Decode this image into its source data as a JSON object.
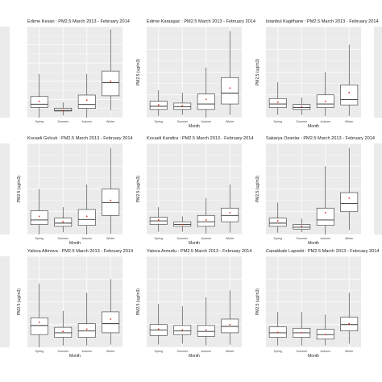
{
  "chart_data": [
    {
      "type": "box",
      "title": "Edirne Kesan : PM2.5 March 2013 - February 2014",
      "xlabel": "",
      "ylabel": "",
      "categories": [
        "Spring",
        "Summer",
        "Autumn",
        "Winter"
      ],
      "boxes": [
        {
          "q1": 28,
          "median": 37,
          "q3": 58,
          "lo": 0,
          "hi": 120,
          "mean": 45
        },
        {
          "q1": 18,
          "median": 20,
          "q3": 26,
          "lo": 6,
          "hi": 42,
          "mean": 20
        },
        {
          "q1": 25,
          "median": 36,
          "q3": 62,
          "lo": 0,
          "hi": 120,
          "mean": 48
        },
        {
          "q1": 60,
          "median": 96,
          "q3": 128,
          "lo": 20,
          "hi": 242,
          "mean": 100
        }
      ],
      "ylim": [
        0,
        250
      ]
    },
    {
      "type": "box",
      "title": "Edirne Karaagac : PM2.5 March 2013 - February 2014",
      "xlabel": "Month",
      "ylabel": "PM2.5 (ug/m3)",
      "categories": [
        "Spring",
        "Summer",
        "Autumn",
        "Winter"
      ],
      "boxes": [
        {
          "q1": 18,
          "median": 25,
          "q3": 36,
          "lo": 4,
          "hi": 60,
          "mean": 28
        },
        {
          "q1": 18,
          "median": 24,
          "q3": 32,
          "lo": 6,
          "hi": 55,
          "mean": 26
        },
        {
          "q1": 18,
          "median": 30,
          "q3": 52,
          "lo": 0,
          "hi": 110,
          "mean": 40
        },
        {
          "q1": 30,
          "median": 54,
          "q3": 88,
          "lo": 6,
          "hi": 190,
          "mean": 65
        }
      ],
      "ylim": [
        0,
        200
      ]
    },
    {
      "type": "box",
      "title": "Istanbul Kagithane : PM2.5 March 2013 - February 2014",
      "xlabel": "Month",
      "ylabel": "PM2.5 (ug/m3)",
      "categories": [
        "Spring",
        "Summer",
        "Autumn",
        "Winter"
      ],
      "boxes": [
        {
          "q1": 22,
          "median": 30,
          "q3": 42,
          "lo": 6,
          "hi": 78,
          "mean": 34
        },
        {
          "q1": 18,
          "median": 22,
          "q3": 29,
          "lo": 6,
          "hi": 44,
          "mean": 24
        },
        {
          "q1": 22,
          "median": 30,
          "q3": 50,
          "lo": 4,
          "hi": 100,
          "mean": 36
        },
        {
          "q1": 28,
          "median": 40,
          "q3": 72,
          "lo": 4,
          "hi": 160,
          "mean": 55
        }
      ],
      "ylim": [
        0,
        200
      ]
    },
    {
      "type": "box",
      "title": "Kocaeli Golcuk : PM2.5 March 2013 - February 2014",
      "xlabel": "Month",
      "ylabel": "PM2.5 (ug/m3)",
      "categories": [
        "Spring",
        "Summer",
        "Autumn",
        "Winter"
      ],
      "boxes": [
        {
          "q1": 22,
          "median": 32,
          "q3": 52,
          "lo": 0,
          "hi": 100,
          "mean": 40
        },
        {
          "q1": 18,
          "median": 25,
          "q3": 36,
          "lo": 5,
          "hi": 60,
          "mean": 28
        },
        {
          "q1": 20,
          "median": 33,
          "q3": 55,
          "lo": 0,
          "hi": 110,
          "mean": 40
        },
        {
          "q1": 42,
          "median": 70,
          "q3": 100,
          "lo": 2,
          "hi": 190,
          "mean": 75
        }
      ],
      "ylim": [
        0,
        200
      ]
    },
    {
      "type": "box",
      "title": "Kocaeli Kandira : PM2.5 March 2013 - February 2014",
      "xlabel": "Month",
      "ylabel": "PM2.5 (ug/m3)",
      "categories": [
        "Spring",
        "Summer",
        "Autumn",
        "Winter"
      ],
      "boxes": [
        {
          "q1": 22,
          "median": 30,
          "q3": 38,
          "lo": 6,
          "hi": 60,
          "mean": 32
        },
        {
          "q1": 18,
          "median": 22,
          "q3": 28,
          "lo": 6,
          "hi": 40,
          "mean": 22
        },
        {
          "q1": 18,
          "median": 28,
          "q3": 42,
          "lo": 2,
          "hi": 80,
          "mean": 32
        },
        {
          "q1": 28,
          "median": 42,
          "q3": 58,
          "lo": 4,
          "hi": 110,
          "mean": 48
        }
      ],
      "ylim": [
        0,
        200
      ]
    },
    {
      "type": "box",
      "title": "Sakarya Ozanlar : PM2.5 March 2013 - February 2014",
      "xlabel": "Month",
      "ylabel": "PM2.5 (ug/m3)",
      "categories": [
        "Spring",
        "Summer",
        "Autumn",
        "Winter"
      ],
      "boxes": [
        {
          "q1": 18,
          "median": 25,
          "q3": 36,
          "lo": 4,
          "hi": 70,
          "mean": 30
        },
        {
          "q1": 12,
          "median": 16,
          "q3": 22,
          "lo": 5,
          "hi": 35,
          "mean": 18
        },
        {
          "q1": 20,
          "median": 32,
          "q3": 58,
          "lo": 0,
          "hi": 150,
          "mean": 48
        },
        {
          "q1": 50,
          "median": 68,
          "q3": 92,
          "lo": 10,
          "hi": 190,
          "mean": 80
        }
      ],
      "ylim": [
        0,
        200
      ]
    },
    {
      "type": "box",
      "title": "Yalova Altinova : PM2.5 March 2013 - February 2014",
      "xlabel": "Month",
      "ylabel": "PM2.5 (ug/m3)",
      "categories": [
        "Spring",
        "Summer",
        "Autumn",
        "Winter"
      ],
      "boxes": [
        {
          "q1": 28,
          "median": 48,
          "q3": 65,
          "lo": 0,
          "hi": 140,
          "mean": 55
        },
        {
          "q1": 22,
          "median": 32,
          "q3": 44,
          "lo": 4,
          "hi": 80,
          "mean": 35
        },
        {
          "q1": 22,
          "median": 36,
          "q3": 52,
          "lo": 4,
          "hi": 120,
          "mean": 40
        },
        {
          "q1": 32,
          "median": 52,
          "q3": 78,
          "lo": 6,
          "hi": 150,
          "mean": 62
        }
      ],
      "ylim": [
        0,
        200
      ]
    },
    {
      "type": "box",
      "title": "Yalova Armutlu : PM2.5 March 2013 - February 2014",
      "xlabel": "Month",
      "ylabel": "PM2.5 (ug/m3)",
      "categories": [
        "Spring",
        "Summer",
        "Autumn",
        "Winter"
      ],
      "boxes": [
        {
          "q1": 26,
          "median": 38,
          "q3": 50,
          "lo": 6,
          "hi": 95,
          "mean": 40
        },
        {
          "q1": 28,
          "median": 36,
          "q3": 48,
          "lo": 8,
          "hi": 90,
          "mean": 38
        },
        {
          "q1": 24,
          "median": 35,
          "q3": 48,
          "lo": 4,
          "hi": 110,
          "mean": 38
        },
        {
          "q1": 32,
          "median": 46,
          "q3": 62,
          "lo": 6,
          "hi": 125,
          "mean": 50
        }
      ],
      "ylim": [
        0,
        200
      ]
    },
    {
      "type": "box",
      "title": "Canakkale Lapseki : PM2.5 March 2013 - February 2014",
      "xlabel": "Month",
      "ylabel": "PM2.5 (ug/m3)",
      "categories": [
        "Spring",
        "Summer",
        "Autumn",
        "Winter"
      ],
      "boxes": [
        {
          "q1": 22,
          "median": 32,
          "q3": 45,
          "lo": 4,
          "hi": 78,
          "mean": 33
        },
        {
          "q1": 22,
          "median": 32,
          "q3": 42,
          "lo": 4,
          "hi": 78,
          "mean": 32
        },
        {
          "q1": 18,
          "median": 28,
          "q3": 40,
          "lo": 4,
          "hi": 72,
          "mean": 28
        },
        {
          "q1": 36,
          "median": 50,
          "q3": 66,
          "lo": 8,
          "hi": 120,
          "mean": 52
        }
      ],
      "ylim": [
        0,
        200
      ]
    }
  ]
}
